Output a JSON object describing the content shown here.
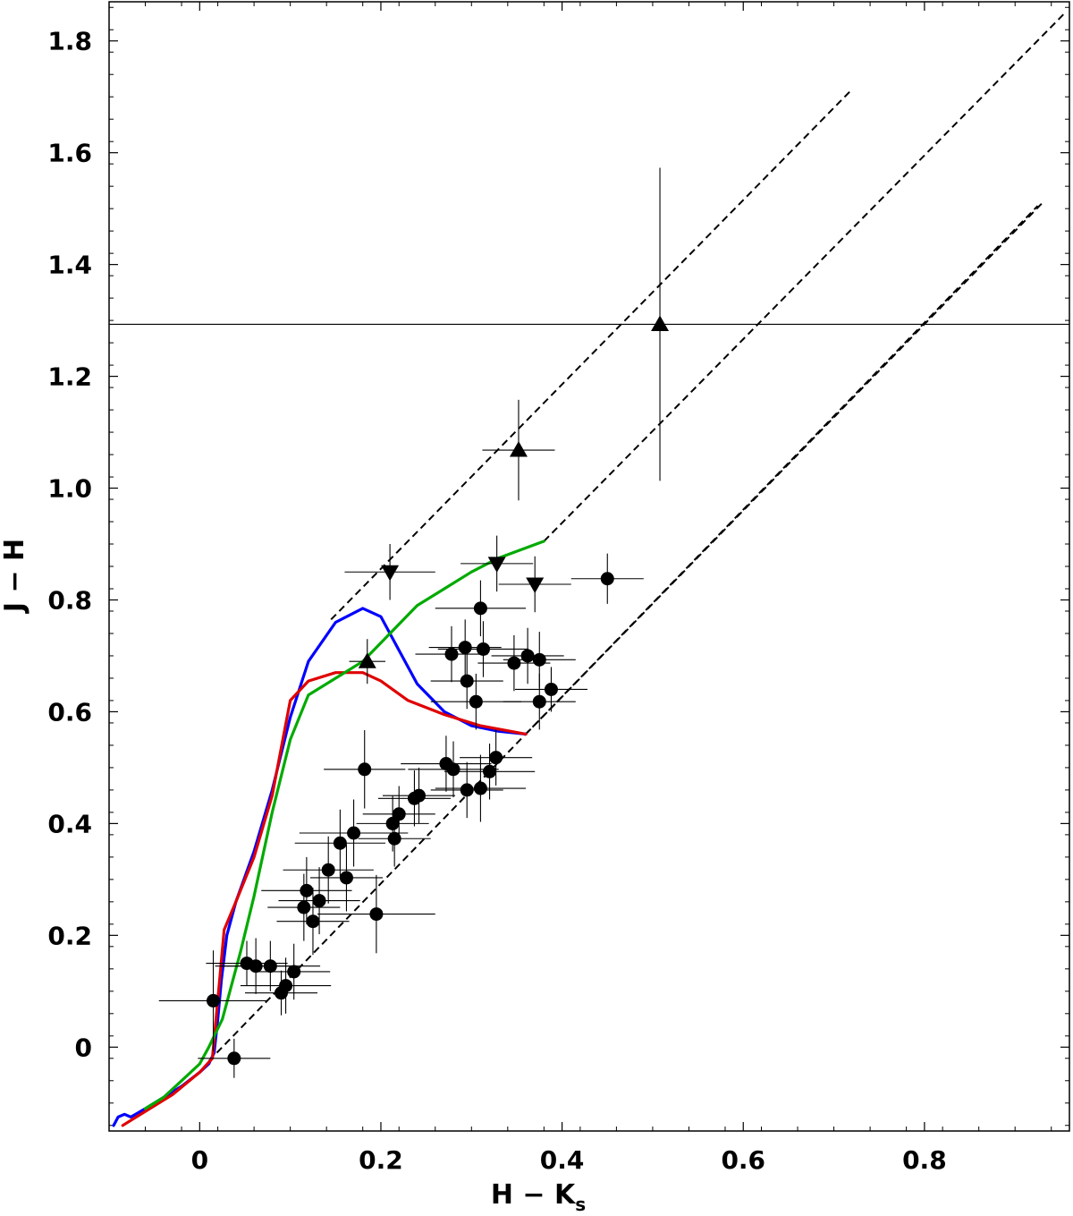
{
  "chart_data": {
    "type": "scatter",
    "title": "",
    "xlabel": "H − K",
    "xlabel_sub": "s",
    "ylabel": "J − H",
    "xlim": [
      -0.1,
      0.96
    ],
    "ylim": [
      -0.15,
      1.87
    ],
    "x_ticks": [
      0,
      0.2,
      0.4,
      0.6,
      0.8
    ],
    "x_tick_labels": [
      "0",
      "0.2",
      "0.4",
      "0.6",
      "0.8"
    ],
    "y_ticks": [
      0,
      0.2,
      0.4,
      0.6,
      0.8,
      1.0,
      1.2,
      1.4,
      1.6,
      1.8
    ],
    "y_tick_labels": [
      "0",
      "0.2",
      "0.4",
      "0.6",
      "0.8",
      "1.0",
      "1.2",
      "1.4",
      "1.6",
      "1.8"
    ],
    "grid": false,
    "curves": [
      {
        "color": "#0000ff",
        "points": [
          [
            -0.095,
            -0.14
          ],
          [
            -0.09,
            -0.125
          ],
          [
            -0.083,
            -0.12
          ],
          [
            -0.076,
            -0.125
          ],
          [
            -0.06,
            -0.11
          ],
          [
            -0.02,
            -0.07
          ],
          [
            0.0,
            -0.045
          ],
          [
            0.01,
            -0.03
          ],
          [
            0.016,
            -0.01
          ],
          [
            0.02,
            0.05
          ],
          [
            0.024,
            0.12
          ],
          [
            0.03,
            0.2
          ],
          [
            0.04,
            0.26
          ],
          [
            0.06,
            0.35
          ],
          [
            0.08,
            0.46
          ],
          [
            0.1,
            0.59
          ],
          [
            0.12,
            0.69
          ],
          [
            0.15,
            0.76
          ],
          [
            0.18,
            0.785
          ],
          [
            0.2,
            0.77
          ],
          [
            0.22,
            0.71
          ],
          [
            0.24,
            0.65
          ],
          [
            0.27,
            0.6
          ],
          [
            0.3,
            0.575
          ],
          [
            0.33,
            0.565
          ],
          [
            0.36,
            0.56
          ]
        ]
      },
      {
        "color": "#e00000",
        "points": [
          [
            -0.085,
            -0.14
          ],
          [
            -0.06,
            -0.115
          ],
          [
            -0.03,
            -0.085
          ],
          [
            0.0,
            -0.045
          ],
          [
            0.014,
            -0.02
          ],
          [
            0.018,
            0.05
          ],
          [
            0.022,
            0.12
          ],
          [
            0.027,
            0.21
          ],
          [
            0.04,
            0.26
          ],
          [
            0.06,
            0.34
          ],
          [
            0.08,
            0.45
          ],
          [
            0.1,
            0.62
          ],
          [
            0.12,
            0.655
          ],
          [
            0.15,
            0.67
          ],
          [
            0.18,
            0.67
          ],
          [
            0.2,
            0.655
          ],
          [
            0.23,
            0.62
          ],
          [
            0.27,
            0.595
          ],
          [
            0.31,
            0.575
          ],
          [
            0.36,
            0.56
          ]
        ]
      },
      {
        "color": "#00aa00",
        "points": [
          [
            -0.06,
            -0.11
          ],
          [
            -0.04,
            -0.09
          ],
          [
            -0.02,
            -0.06
          ],
          [
            0.0,
            -0.03
          ],
          [
            0.01,
            0.0
          ],
          [
            0.025,
            0.05
          ],
          [
            0.045,
            0.17
          ],
          [
            0.06,
            0.27
          ],
          [
            0.08,
            0.42
          ],
          [
            0.1,
            0.55
          ],
          [
            0.12,
            0.63
          ],
          [
            0.15,
            0.66
          ],
          [
            0.18,
            0.69
          ],
          [
            0.21,
            0.74
          ],
          [
            0.24,
            0.79
          ],
          [
            0.27,
            0.82
          ],
          [
            0.3,
            0.85
          ],
          [
            0.33,
            0.875
          ],
          [
            0.38,
            0.905
          ]
        ]
      }
    ],
    "reddening_lines": [
      {
        "from": [
          0.145,
          0.765
        ],
        "to": [
          0.718,
          1.71
        ]
      },
      {
        "from": [
          0.38,
          0.905
        ],
        "to": [
          0.955,
          1.85
        ]
      },
      {
        "from": [
          0.36,
          0.56
        ],
        "to": [
          0.93,
          1.51
        ]
      },
      {
        "from": [
          0.01,
          -0.025
        ],
        "to": [
          0.925,
          1.505
        ]
      }
    ],
    "series": [
      {
        "marker": "circle",
        "points": [
          [
            0.015,
            0.083,
            0.06,
            0.09
          ],
          [
            0.038,
            -0.02,
            0.04,
            0.035
          ],
          [
            0.052,
            0.15,
            0.045,
            0.04
          ],
          [
            0.062,
            0.145,
            0.045,
            0.05
          ],
          [
            0.078,
            0.145,
            0.055,
            0.045
          ],
          [
            0.09,
            0.097,
            0.04,
            0.04
          ],
          [
            0.095,
            0.11,
            0.05,
            0.05
          ],
          [
            0.104,
            0.135,
            0.04,
            0.05
          ],
          [
            0.115,
            0.25,
            0.04,
            0.06
          ],
          [
            0.118,
            0.28,
            0.05,
            0.06
          ],
          [
            0.125,
            0.225,
            0.04,
            0.06
          ],
          [
            0.132,
            0.262,
            0.045,
            0.06
          ],
          [
            0.142,
            0.317,
            0.05,
            0.06
          ],
          [
            0.155,
            0.365,
            0.05,
            0.06
          ],
          [
            0.162,
            0.303,
            0.04,
            0.06
          ],
          [
            0.17,
            0.383,
            0.06,
            0.06
          ],
          [
            0.182,
            0.497,
            0.045,
            0.07
          ],
          [
            0.195,
            0.238,
            0.065,
            0.07
          ],
          [
            0.213,
            0.4,
            0.04,
            0.05
          ],
          [
            0.215,
            0.373,
            0.04,
            0.05
          ],
          [
            0.22,
            0.417,
            0.04,
            0.05
          ],
          [
            0.237,
            0.445,
            0.04,
            0.05
          ],
          [
            0.242,
            0.45,
            0.04,
            0.05
          ],
          [
            0.272,
            0.507,
            0.05,
            0.05
          ],
          [
            0.28,
            0.497,
            0.05,
            0.05
          ],
          [
            0.295,
            0.46,
            0.04,
            0.05
          ],
          [
            0.31,
            0.463,
            0.05,
            0.06
          ],
          [
            0.32,
            0.493,
            0.05,
            0.05
          ],
          [
            0.327,
            0.518,
            0.04,
            0.05
          ],
          [
            0.278,
            0.703,
            0.04,
            0.05
          ],
          [
            0.293,
            0.715,
            0.04,
            0.05
          ],
          [
            0.295,
            0.655,
            0.04,
            0.05
          ],
          [
            0.305,
            0.618,
            0.05,
            0.05
          ],
          [
            0.31,
            0.785,
            0.05,
            0.05
          ],
          [
            0.313,
            0.712,
            0.05,
            0.05
          ],
          [
            0.347,
            0.687,
            0.04,
            0.05
          ],
          [
            0.362,
            0.7,
            0.04,
            0.05
          ],
          [
            0.375,
            0.693,
            0.04,
            0.05
          ],
          [
            0.375,
            0.618,
            0.04,
            0.05
          ],
          [
            0.388,
            0.64,
            0.04,
            0.04
          ],
          [
            0.45,
            0.838,
            0.04,
            0.045
          ]
        ]
      },
      {
        "marker": "triangle-up",
        "points": [
          [
            0.185,
            0.69,
            0.02,
            0.04
          ],
          [
            0.352,
            1.068,
            0.04,
            0.09
          ],
          [
            0.508,
            1.293,
            0.88,
            0.28
          ]
        ]
      },
      {
        "marker": "triangle-down",
        "points": [
          [
            0.21,
            0.85,
            0.05,
            0.05
          ],
          [
            0.328,
            0.865,
            0.04,
            0.05
          ],
          [
            0.37,
            0.828,
            0.04,
            0.05
          ]
        ]
      }
    ]
  }
}
